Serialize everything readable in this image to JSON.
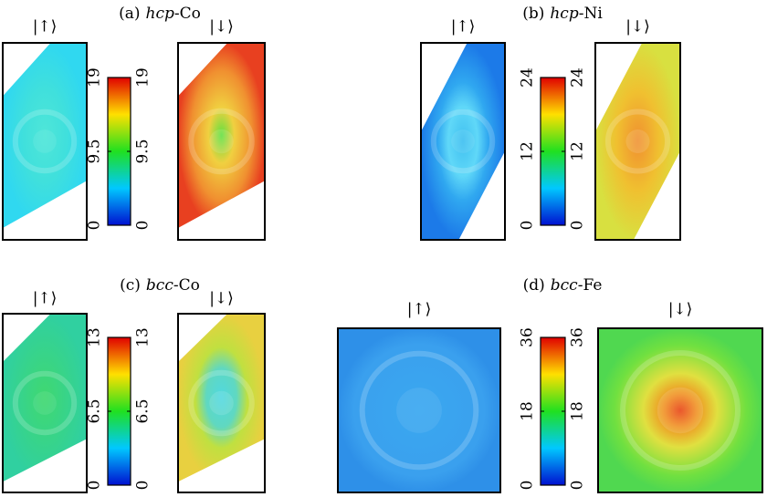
{
  "panels": [
    {
      "title": {
        "label": "(a)",
        "lattice": "hcp",
        "element": "-Co"
      },
      "spin_up": "|↑⟩",
      "spin_down": "|↓⟩",
      "colorbar": {
        "lim": [
          0,
          19
        ],
        "ticks": [
          0,
          9.5,
          19
        ]
      }
    },
    {
      "title": {
        "label": "(b)",
        "lattice": "hcp",
        "element": "-Ni"
      },
      "spin_up": "|↑⟩",
      "spin_down": "|↓⟩",
      "colorbar": {
        "lim": [
          0,
          24
        ],
        "ticks": [
          0,
          12,
          24
        ]
      }
    },
    {
      "title": {
        "label": "(c)",
        "lattice": "bcc",
        "element": "-Co"
      },
      "spin_up": "|↑⟩",
      "spin_down": "|↓⟩",
      "colorbar": {
        "lim": [
          0,
          13
        ],
        "ticks": [
          0,
          6.5,
          13
        ]
      }
    },
    {
      "title": {
        "label": "(d)",
        "lattice": "bcc",
        "element": "-Fe"
      },
      "spin_up": "|↑⟩",
      "spin_down": "|↓⟩",
      "colorbar": {
        "lim": [
          0,
          36
        ],
        "ticks": [
          0,
          18,
          36
        ]
      }
    }
  ]
}
